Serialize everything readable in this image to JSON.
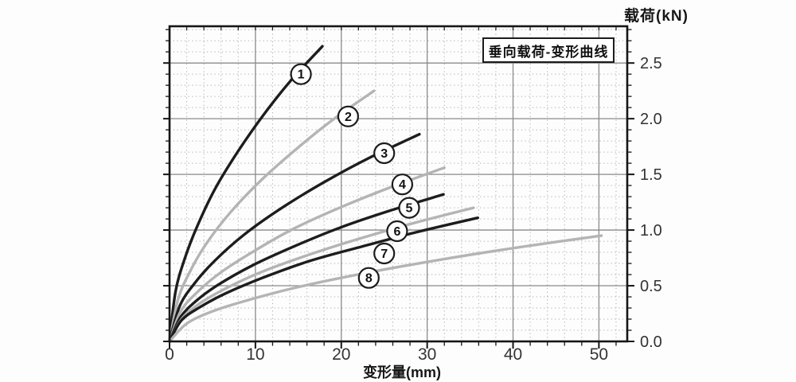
{
  "colors": {
    "background": "#fdfdfd",
    "frame": "#161616",
    "grid_major": "#8a8a8a",
    "grid_minor": "#b0b0b0",
    "tick_label": "#333333",
    "curve_dark": "#1d1d1d",
    "curve_gray": "#b4b4b4",
    "circle_stroke": "#1c1c1c",
    "circle_fill": "#ffffff"
  },
  "chart_data": {
    "type": "line",
    "title": "垂向载荷-变形曲线",
    "xlabel": "变形量(mm)",
    "ylabel": "载荷(kN)",
    "xlim": [
      0,
      53.3
    ],
    "ylim": [
      0,
      2.83
    ],
    "x_ticks": [
      0,
      10,
      20,
      30,
      40,
      50
    ],
    "x_minor_step": 2,
    "y_ticks": [
      "0.0",
      "0.5",
      "1.0",
      "1.5",
      "2.0",
      "2.5"
    ],
    "y_minor_step": 0.1,
    "grid": "major-solid-gray, minor-dotted",
    "legend_position": "none",
    "series": [
      {
        "name": "1",
        "tone": "dark",
        "label_xy": [
          15.3,
          2.4
        ],
        "points": [
          [
            0,
            0
          ],
          [
            0.7,
            0.45
          ],
          [
            1.8,
            0.75
          ],
          [
            3.2,
            1.03
          ],
          [
            5.3,
            1.37
          ],
          [
            8.0,
            1.71
          ],
          [
            11.0,
            2.04
          ],
          [
            14.2,
            2.35
          ],
          [
            17.8,
            2.65
          ]
        ]
      },
      {
        "name": "2",
        "tone": "gray",
        "label_xy": [
          20.8,
          2.02
        ],
        "points": [
          [
            0,
            0
          ],
          [
            1.0,
            0.38
          ],
          [
            2.4,
            0.63
          ],
          [
            4.3,
            0.88
          ],
          [
            7.1,
            1.16
          ],
          [
            10.7,
            1.45
          ],
          [
            14.8,
            1.73
          ],
          [
            19.0,
            1.99
          ],
          [
            23.8,
            2.25
          ]
        ]
      },
      {
        "name": "3",
        "tone": "dark",
        "label_xy": [
          25.0,
          1.69
        ],
        "points": [
          [
            0,
            0
          ],
          [
            1.2,
            0.32
          ],
          [
            2.9,
            0.52
          ],
          [
            5.2,
            0.72
          ],
          [
            8.7,
            0.96
          ],
          [
            13.1,
            1.2
          ],
          [
            18.0,
            1.43
          ],
          [
            23.3,
            1.65
          ],
          [
            29.1,
            1.86
          ]
        ]
      },
      {
        "name": "4",
        "tone": "gray",
        "label_xy": [
          27.1,
          1.41
        ],
        "points": [
          [
            0,
            0
          ],
          [
            1.3,
            0.27
          ],
          [
            3.2,
            0.44
          ],
          [
            5.8,
            0.61
          ],
          [
            9.6,
            0.8
          ],
          [
            14.4,
            1.01
          ],
          [
            19.8,
            1.2
          ],
          [
            25.6,
            1.38
          ],
          [
            32.0,
            1.56
          ]
        ]
      },
      {
        "name": "5",
        "tone": "dark",
        "label_xy": [
          27.9,
          1.2
        ],
        "points": [
          [
            0,
            0
          ],
          [
            1.3,
            0.22
          ],
          [
            3.2,
            0.37
          ],
          [
            5.7,
            0.51
          ],
          [
            9.6,
            0.68
          ],
          [
            14.4,
            0.85
          ],
          [
            19.8,
            1.02
          ],
          [
            25.5,
            1.17
          ],
          [
            31.9,
            1.32
          ]
        ]
      },
      {
        "name": "6",
        "tone": "gray",
        "label_xy": [
          26.5,
          0.99
        ],
        "points": [
          [
            0,
            0
          ],
          [
            1.4,
            0.2
          ],
          [
            3.5,
            0.34
          ],
          [
            6.4,
            0.47
          ],
          [
            10.6,
            0.62
          ],
          [
            15.9,
            0.77
          ],
          [
            22.0,
            0.92
          ],
          [
            28.3,
            1.06
          ],
          [
            35.4,
            1.2
          ]
        ]
      },
      {
        "name": "7",
        "tone": "dark",
        "label_xy": [
          25.0,
          0.79
        ],
        "points": [
          [
            0,
            0
          ],
          [
            1.4,
            0.19
          ],
          [
            3.6,
            0.31
          ],
          [
            6.5,
            0.43
          ],
          [
            10.8,
            0.57
          ],
          [
            16.2,
            0.72
          ],
          [
            22.3,
            0.85
          ],
          [
            28.7,
            0.98
          ],
          [
            35.9,
            1.11
          ]
        ]
      },
      {
        "name": "8",
        "tone": "gray",
        "label_xy": [
          23.2,
          0.57
        ],
        "points": [
          [
            0,
            0
          ],
          [
            2.0,
            0.16
          ],
          [
            5.0,
            0.27
          ],
          [
            9.1,
            0.37
          ],
          [
            15.1,
            0.49
          ],
          [
            22.6,
            0.61
          ],
          [
            31.2,
            0.73
          ],
          [
            40.2,
            0.84
          ],
          [
            50.3,
            0.95
          ]
        ]
      }
    ]
  }
}
